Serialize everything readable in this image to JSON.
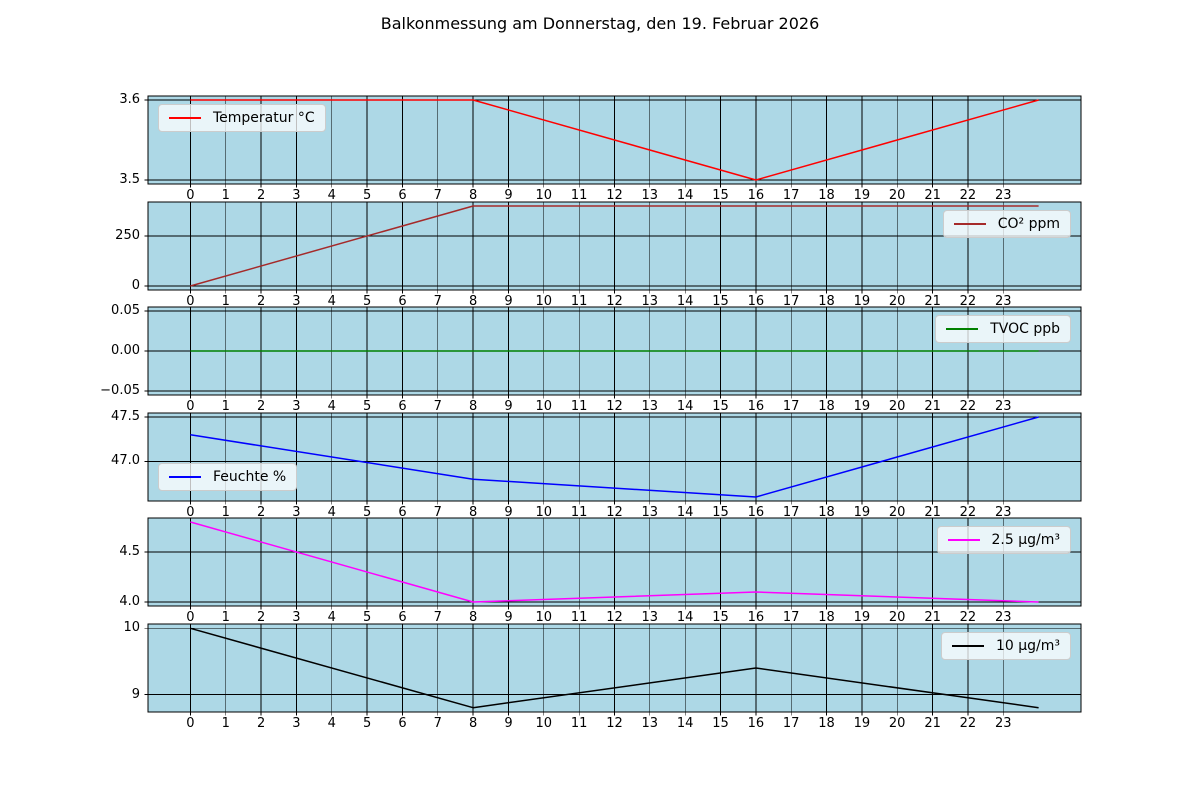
{
  "title": "Balkonmessung am Donnerstag, den 19. Februar 2026",
  "style": {
    "figure_background": "#ffffff",
    "axes_background": "#add8e6",
    "grid_color": "#000000",
    "frame_color": "#000000",
    "legend_background": "rgba(255,255,255,0.75)",
    "text_color": "#000000"
  },
  "x_axis": {
    "xlim": [
      -1.2,
      25.2
    ],
    "tick_values": [
      0,
      1,
      2,
      3,
      4,
      5,
      6,
      7,
      8,
      9,
      10,
      11,
      12,
      13,
      14,
      15,
      16,
      17,
      18,
      19,
      20,
      21,
      22,
      23
    ],
    "tick_labels": [
      "0",
      "1",
      "2",
      "3",
      "4",
      "5",
      "6",
      "7",
      "8",
      "9",
      "10",
      "11",
      "12",
      "13",
      "14",
      "15",
      "16",
      "17",
      "18",
      "19",
      "20",
      "21",
      "22",
      "23"
    ]
  },
  "chart_data": [
    {
      "type": "line",
      "series_label": "Temperatur °C",
      "color": "#ff0000",
      "x": [
        0,
        8,
        16,
        24
      ],
      "values": [
        3.6,
        3.6,
        3.5,
        3.6
      ],
      "ylim": [
        3.495,
        3.605
      ],
      "yticks": [
        {
          "v": 3.6,
          "label": "3.6"
        },
        {
          "v": 3.5,
          "label": "3.5"
        }
      ],
      "legend_pos": "upper-left",
      "grid": true
    },
    {
      "type": "line",
      "series_label": "CO² ppm",
      "color": "#a52a2a",
      "x": [
        0,
        8,
        16,
        24
      ],
      "values": [
        0,
        400,
        400,
        400
      ],
      "ylim": [
        -20,
        420
      ],
      "yticks": [
        {
          "v": 250,
          "label": "250"
        },
        {
          "v": 0,
          "label": "0"
        }
      ],
      "legend_pos": "upper-right",
      "grid": true
    },
    {
      "type": "line",
      "series_label": "TVOC ppb",
      "color": "#008000",
      "x": [
        0,
        8,
        16,
        24
      ],
      "values": [
        0,
        0,
        0,
        0
      ],
      "ylim": [
        -0.055,
        0.055
      ],
      "yticks": [
        {
          "v": 0.05,
          "label": "0.05"
        },
        {
          "v": 0,
          "label": "0.00"
        },
        {
          "v": -0.05,
          "label": "−0.05"
        }
      ],
      "legend_pos": "upper-right",
      "grid": true
    },
    {
      "type": "line",
      "series_label": "Feuchte %",
      "color": "#0000ff",
      "x": [
        0,
        8,
        16,
        24
      ],
      "values": [
        47.3,
        46.8,
        46.6,
        47.5
      ],
      "ylim": [
        46.555,
        47.545
      ],
      "yticks": [
        {
          "v": 47.5,
          "label": "47.5"
        },
        {
          "v": 47.0,
          "label": "47.0"
        }
      ],
      "legend_pos": "lower-left",
      "grid": true
    },
    {
      "type": "line",
      "series_label": "2.5 µg/m³",
      "color": "#ff00ff",
      "x": [
        0,
        8,
        16,
        24
      ],
      "values": [
        4.8,
        4.0,
        4.1,
        4.0
      ],
      "ylim": [
        3.96,
        4.84
      ],
      "yticks": [
        {
          "v": 4.5,
          "label": "4.5"
        },
        {
          "v": 4.0,
          "label": "4.0"
        }
      ],
      "legend_pos": "upper-right",
      "grid": true
    },
    {
      "type": "line",
      "series_label": "10 µg/m³",
      "color": "#000000",
      "x": [
        0,
        8,
        16,
        24
      ],
      "values": [
        10,
        8.8,
        9.4,
        8.8
      ],
      "ylim": [
        8.735,
        10.065
      ],
      "yticks": [
        {
          "v": 10,
          "label": "10"
        },
        {
          "v": 9,
          "label": "9"
        }
      ],
      "legend_pos": "upper-right",
      "grid": true
    }
  ]
}
